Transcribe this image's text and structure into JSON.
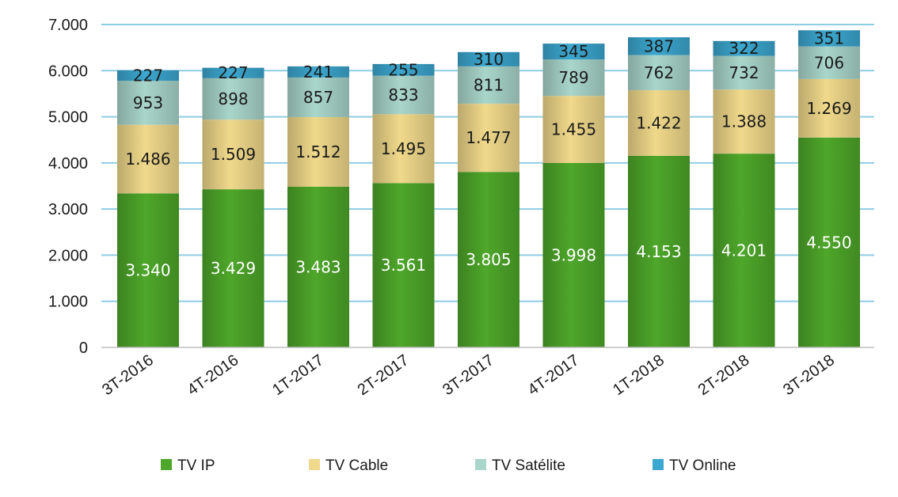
{
  "chart_data": {
    "type": "bar",
    "stacked": true,
    "categories": [
      "3T-2016",
      "4T-2016",
      "1T-2017",
      "2T-2017",
      "3T-2017",
      "4T-2017",
      "1T-2018",
      "2T-2018",
      "3T-2018"
    ],
    "series": [
      {
        "name": "TV IP",
        "color": "#4ea72a",
        "label_color": "#ffffff",
        "values": [
          3340,
          3429,
          3483,
          3561,
          3805,
          3998,
          4153,
          4201,
          4550
        ],
        "labels": [
          "3.340",
          "3.429",
          "3.483",
          "3.561",
          "3.805",
          "3.998",
          "4.153",
          "4.201",
          "4.550"
        ]
      },
      {
        "name": "TV Cable",
        "color": "#f0d98b",
        "label_color": "#1a1a1a",
        "values": [
          1486,
          1509,
          1512,
          1495,
          1477,
          1455,
          1422,
          1388,
          1269
        ],
        "labels": [
          "1.486",
          "1.509",
          "1.512",
          "1.495",
          "1.477",
          "1.455",
          "1.422",
          "1.388",
          "1.269"
        ]
      },
      {
        "name": "TV Satélite",
        "color": "#a9d6ca",
        "label_color": "#1a1a1a",
        "values": [
          953,
          898,
          857,
          833,
          811,
          789,
          762,
          732,
          706
        ],
        "labels": [
          "953",
          "898",
          "857",
          "833",
          "811",
          "789",
          "762",
          "732",
          "706"
        ]
      },
      {
        "name": "TV Online",
        "color": "#3ca7cf",
        "label_color": "#1a1a1a",
        "values": [
          227,
          227,
          241,
          255,
          310,
          345,
          387,
          322,
          351
        ],
        "labels": [
          "227",
          "227",
          "241",
          "255",
          "310",
          "345",
          "387",
          "322",
          "351"
        ]
      }
    ],
    "y_ticks": [
      "0",
      "1.000",
      "2.000",
      "3.000",
      "4.000",
      "5.000",
      "6.000",
      "7.000"
    ],
    "ylim": [
      0,
      7000
    ],
    "grid": true,
    "gridline_color": "#8fcde3",
    "legend_position": "bottom",
    "title": "",
    "xlabel": "",
    "ylabel": ""
  }
}
